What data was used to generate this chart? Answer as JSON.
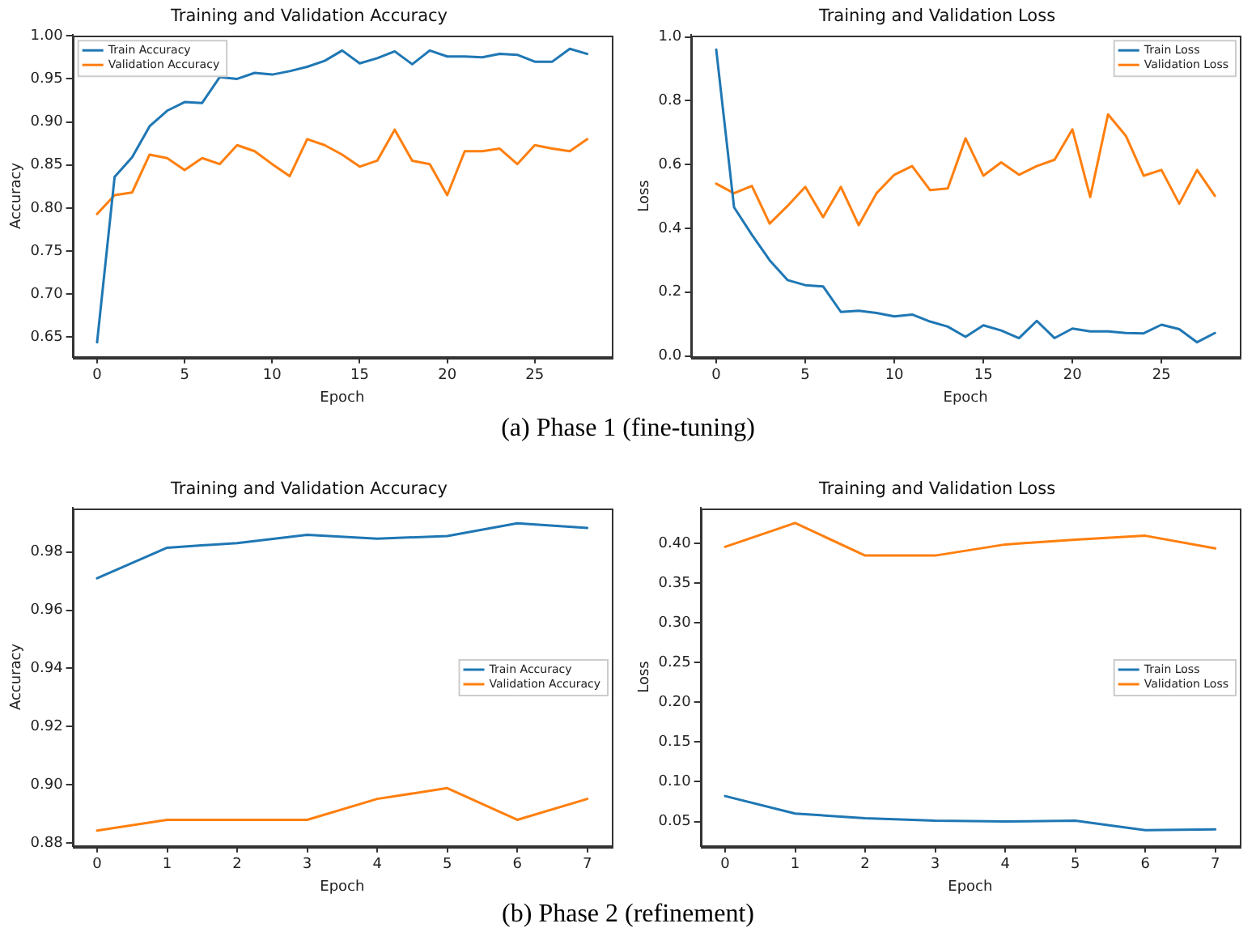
{
  "chart_data": [
    {
      "type": "line",
      "title": "Training and Validation Accuracy",
      "xlabel": "Epoch",
      "ylabel": "Accuracy",
      "annotations": [
        "(a) Phase 1 (fine-tuning)"
      ],
      "legend": "top left",
      "grid": false,
      "x": [
        0,
        1,
        2,
        3,
        4,
        5,
        6,
        7,
        8,
        9,
        10,
        11,
        12,
        13,
        14,
        15,
        16,
        17,
        18,
        19,
        20,
        21,
        22,
        23,
        24,
        25,
        26,
        27,
        28
      ],
      "xlim": [
        -1.4,
        29.4
      ],
      "xticks": [
        0,
        5,
        10,
        15,
        20,
        25
      ],
      "ylim": [
        0.627,
        1.001
      ],
      "yticks": [
        {
          "value": 0.65,
          "label": "0.65"
        },
        {
          "value": 0.7,
          "label": "0.70"
        },
        {
          "value": 0.75,
          "label": "0.75"
        },
        {
          "value": 0.8,
          "label": "0.80"
        },
        {
          "value": 0.85,
          "label": "0.85"
        },
        {
          "value": 0.9,
          "label": "0.90"
        },
        {
          "value": 0.95,
          "label": "0.95"
        },
        {
          "value": 1,
          "label": "1.00"
        }
      ],
      "series": [
        {
          "name": "Train Accuracy",
          "color": "#1f77b4",
          "values": [
            0.644,
            0.836,
            0.859,
            0.895,
            0.913,
            0.923,
            0.922,
            0.952,
            0.95,
            0.957,
            0.955,
            0.959,
            0.964,
            0.971,
            0.983,
            0.968,
            0.974,
            0.982,
            0.967,
            0.983,
            0.976,
            0.976,
            0.975,
            0.979,
            0.978,
            0.97,
            0.97,
            0.985,
            0.979
          ]
        },
        {
          "name": "Validation Accuracy",
          "color": "#ff7f0e",
          "values": [
            0.793,
            0.815,
            0.818,
            0.862,
            0.858,
            0.844,
            0.858,
            0.851,
            0.873,
            0.866,
            0.851,
            0.837,
            0.88,
            0.873,
            0.862,
            0.848,
            0.855,
            0.891,
            0.855,
            0.851,
            0.815,
            0.866,
            0.866,
            0.869,
            0.851,
            0.873,
            0.869,
            0.866,
            0.88
          ]
        }
      ]
    },
    {
      "type": "line",
      "title": "Training and Validation Loss",
      "xlabel": "Epoch",
      "ylabel": "Loss",
      "legend": "top right",
      "grid": false,
      "x": [
        0,
        1,
        2,
        3,
        4,
        5,
        6,
        7,
        8,
        9,
        10,
        11,
        12,
        13,
        14,
        15,
        16,
        17,
        18,
        19,
        20,
        21,
        22,
        23,
        24,
        25,
        26,
        27,
        28
      ],
      "xlim": [
        -1.4,
        29.4
      ],
      "xticks": [
        0,
        5,
        10,
        15,
        20,
        25
      ],
      "ylim": [
        -0.003,
        1.006
      ],
      "yticks": [
        {
          "value": 0,
          "label": "0.0"
        },
        {
          "value": 0.2,
          "label": "0.2"
        },
        {
          "value": 0.4,
          "label": "0.4"
        },
        {
          "value": 0.6,
          "label": "0.6"
        },
        {
          "value": 0.8,
          "label": "0.8"
        },
        {
          "value": 1,
          "label": "1.0"
        }
      ],
      "series": [
        {
          "name": "Train Loss",
          "color": "#1f77b4",
          "values": [
            0.96,
            0.466,
            0.38,
            0.3,
            0.238,
            0.222,
            0.218,
            0.138,
            0.142,
            0.135,
            0.124,
            0.13,
            0.108,
            0.092,
            0.06,
            0.096,
            0.08,
            0.056,
            0.11,
            0.056,
            0.086,
            0.077,
            0.077,
            0.072,
            0.071,
            0.098,
            0.084,
            0.043,
            0.072
          ]
        },
        {
          "name": "Validation Loss",
          "color": "#ff7f0e",
          "values": [
            0.54,
            0.51,
            0.533,
            0.415,
            0.47,
            0.53,
            0.435,
            0.53,
            0.41,
            0.51,
            0.568,
            0.595,
            0.52,
            0.525,
            0.682,
            0.565,
            0.607,
            0.568,
            0.595,
            0.615,
            0.71,
            0.498,
            0.757,
            0.69,
            0.565,
            0.583,
            0.477,
            0.583,
            0.502
          ]
        }
      ]
    },
    {
      "type": "line",
      "title": "Training and Validation Accuracy",
      "xlabel": "Epoch",
      "ylabel": "Accuracy",
      "annotations": [
        "(b) Phase 2 (refinement)"
      ],
      "legend": "right",
      "grid": false,
      "x": [
        0,
        1,
        2,
        3,
        4,
        5,
        6,
        7
      ],
      "xlim": [
        -0.35,
        7.35
      ],
      "xticks": [
        0,
        1,
        2,
        3,
        4,
        5,
        6,
        7
      ],
      "ylim": [
        0.8789,
        0.9952
      ],
      "yticks": [
        0.88,
        {
          "value": 0.9,
          "label": "0.90"
        },
        0.92,
        0.94,
        0.96,
        0.98
      ],
      "series": [
        {
          "name": "Train Accuracy",
          "color": "#1f77b4",
          "values": [
            0.971,
            0.9815,
            0.9831,
            0.9859,
            0.9846,
            0.9855,
            0.9899,
            0.9883
          ]
        },
        {
          "name": "Validation Accuracy",
          "color": "#ff7f0e",
          "values": [
            0.8842,
            0.8879,
            0.8879,
            0.8879,
            0.8951,
            0.8988,
            0.8879,
            0.8951
          ]
        }
      ]
    },
    {
      "type": "line",
      "title": "Training and Validation Loss",
      "xlabel": "Epoch",
      "ylabel": "Loss",
      "legend": "right",
      "grid": false,
      "x": [
        0,
        1,
        2,
        3,
        4,
        5,
        6,
        7
      ],
      "xlim": [
        -0.35,
        7.35
      ],
      "xticks": [
        0,
        1,
        2,
        3,
        4,
        5,
        6,
        7
      ],
      "ylim": [
        0.0191,
        0.4451
      ],
      "yticks": [
        0.05,
        {
          "value": 0.1,
          "label": "0.10"
        },
        0.15,
        {
          "value": 0.2,
          "label": "0.20"
        },
        0.25,
        {
          "value": 0.3,
          "label": "0.30"
        },
        0.35,
        {
          "value": 0.4,
          "label": "0.40"
        }
      ],
      "series": [
        {
          "name": "Train Loss",
          "color": "#1f77b4",
          "values": [
            0.082,
            0.06,
            0.054,
            0.051,
            0.05,
            0.051,
            0.039,
            0.04
          ]
        },
        {
          "name": "Validation Loss",
          "color": "#ff7f0e",
          "values": [
            0.396,
            0.426,
            0.385,
            0.385,
            0.399,
            0.405,
            0.41,
            0.394
          ]
        }
      ]
    }
  ]
}
